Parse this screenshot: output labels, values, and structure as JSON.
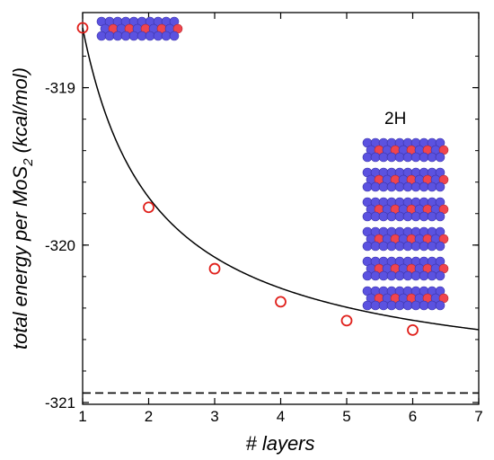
{
  "chart_data": {
    "type": "scatter",
    "title": "",
    "xlabel": "# layers",
    "ylabel_main": "total energy per MoS",
    "ylabel_sub": "2",
    "ylabel_unit": " (kcal/mol)",
    "xlim": [
      1,
      7
    ],
    "ylim": [
      -321,
      -318.62
    ],
    "x_ticks": [
      1,
      2,
      3,
      4,
      5,
      6,
      7
    ],
    "x_tick_labels": [
      "1",
      "2",
      "3",
      "4",
      "5",
      "6",
      "7"
    ],
    "y_ticks": [
      -319,
      -320,
      -321
    ],
    "y_tick_labels": [
      "-319",
      "-320",
      "-321"
    ],
    "grid": false,
    "series": [
      {
        "marker": "open-circle",
        "color": "#e0201b",
        "x": [
          1,
          2,
          3,
          4,
          5,
          6
        ],
        "y": [
          -318.62,
          -319.76,
          -320.15,
          -320.36,
          -320.48,
          -320.54
        ]
      }
    ],
    "fit_curve": {
      "color": "#000000",
      "style": "solid"
    },
    "asymptote": {
      "y": -320.94,
      "color": "#000000",
      "style": "dashed"
    },
    "annotations": [
      {
        "text": "2H"
      }
    ],
    "colors": {
      "molybdenum": "#5b52e0",
      "sulfur": "#f0454e"
    }
  }
}
